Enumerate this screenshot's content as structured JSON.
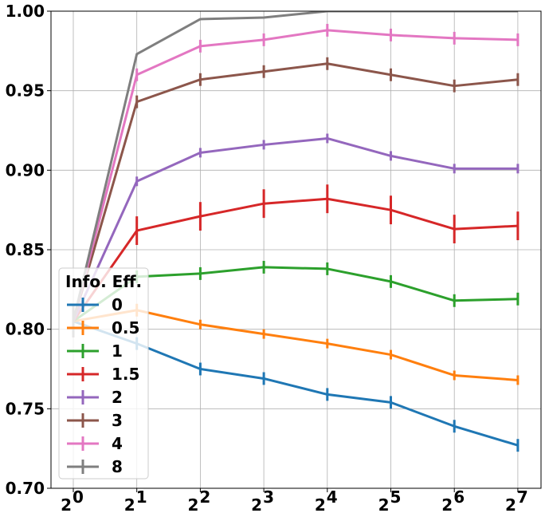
{
  "chart_data": {
    "type": "line",
    "title": "",
    "xlabel": "",
    "ylabel": "",
    "x": [
      1,
      2,
      4,
      8,
      16,
      32,
      64,
      128
    ],
    "x_scale": "log2",
    "x_tick_labels": [
      {
        "base": "2",
        "exp": "0"
      },
      {
        "base": "2",
        "exp": "1"
      },
      {
        "base": "2",
        "exp": "2"
      },
      {
        "base": "2",
        "exp": "3"
      },
      {
        "base": "2",
        "exp": "4"
      },
      {
        "base": "2",
        "exp": "5"
      },
      {
        "base": "2",
        "exp": "6"
      },
      {
        "base": "2",
        "exp": "7"
      }
    ],
    "ylim": [
      0.7,
      1.0
    ],
    "y_ticks": [
      "0.70",
      "0.75",
      "0.80",
      "0.85",
      "0.90",
      "0.95",
      "1.00"
    ],
    "grid": true,
    "legend": {
      "title": "Info. Eff.",
      "position": "lower-left"
    },
    "series": [
      {
        "name": "0",
        "color": "#1f77b4",
        "values": [
          0.805,
          0.791,
          0.775,
          0.769,
          0.759,
          0.754,
          0.739,
          0.727
        ],
        "errors": [
          0.01,
          0.004,
          0.004,
          0.004,
          0.004,
          0.004,
          0.004,
          0.004
        ]
      },
      {
        "name": "0.5",
        "color": "#ff7f0e",
        "values": [
          0.805,
          0.812,
          0.803,
          0.797,
          0.791,
          0.784,
          0.771,
          0.768
        ],
        "errors": [
          0.01,
          0.004,
          0.003,
          0.003,
          0.003,
          0.003,
          0.003,
          0.003
        ]
      },
      {
        "name": "1",
        "color": "#2ca02c",
        "values": [
          0.805,
          0.833,
          0.835,
          0.839,
          0.838,
          0.83,
          0.818,
          0.819
        ],
        "errors": [
          0.01,
          0.004,
          0.004,
          0.004,
          0.004,
          0.004,
          0.004,
          0.004
        ]
      },
      {
        "name": "1.5",
        "color": "#d62728",
        "values": [
          0.805,
          0.862,
          0.871,
          0.879,
          0.882,
          0.875,
          0.863,
          0.865
        ],
        "errors": [
          0.01,
          0.009,
          0.009,
          0.009,
          0.009,
          0.009,
          0.009,
          0.009
        ]
      },
      {
        "name": "2",
        "color": "#9467bd",
        "values": [
          0.805,
          0.893,
          0.911,
          0.916,
          0.92,
          0.909,
          0.901,
          0.901
        ],
        "errors": [
          0.01,
          0.003,
          0.003,
          0.003,
          0.003,
          0.003,
          0.003,
          0.003
        ]
      },
      {
        "name": "3",
        "color": "#8c564b",
        "values": [
          0.805,
          0.943,
          0.957,
          0.962,
          0.967,
          0.96,
          0.953,
          0.957
        ],
        "errors": [
          0.01,
          0.004,
          0.004,
          0.004,
          0.004,
          0.004,
          0.004,
          0.004
        ]
      },
      {
        "name": "4",
        "color": "#e377c2",
        "values": [
          0.805,
          0.96,
          0.978,
          0.982,
          0.988,
          0.985,
          0.983,
          0.982
        ],
        "errors": [
          0.01,
          0.004,
          0.004,
          0.004,
          0.004,
          0.004,
          0.004,
          0.004
        ]
      },
      {
        "name": "8",
        "color": "#7f7f7f",
        "values": [
          0.805,
          0.973,
          0.995,
          0.996,
          1.0,
          1.0,
          1.0,
          1.0
        ],
        "errors": [
          0.01,
          0.0,
          0.0,
          0.0,
          0.0,
          0.0,
          0.0,
          0.0
        ]
      }
    ]
  }
}
